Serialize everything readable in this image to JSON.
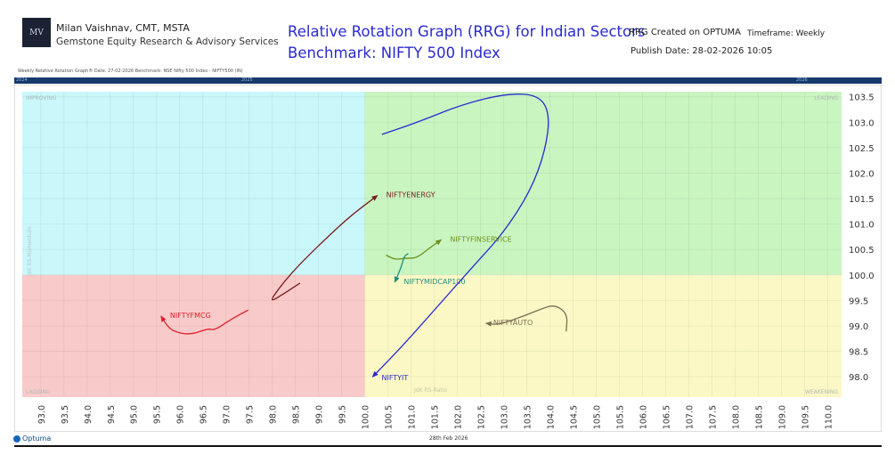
{
  "header": {
    "logo_text": "MV",
    "author": "Milan Vaishnav, CMT, MSTA",
    "firm": "Gemstone Equity Research & Advisory Services",
    "title_line1": "Relative Rotation Graph (RRG) for Indian Sectors",
    "title_line2": "Benchmark: NIFTY 500 Index",
    "created": "RRG Created on OPTUMA",
    "timeframe": "Timeframe: Weekly",
    "publish": "Publish Date: 28-02-2026 10:05"
  },
  "subheader": "Weekly Relative Rotation Graph®    Date: 27-02-2026  Benchmark: NSE Nifty 500 Index - NIFTY500 (IN)",
  "timeline": {
    "years": [
      "2024",
      "2025",
      "2026"
    ]
  },
  "footer": {
    "brand": "Optuma",
    "date": "28th Feb 2026"
  },
  "chart_data": {
    "type": "scatter",
    "subtype": "relative-rotation-graph",
    "xlabel": "JdK RS-Ratio",
    "ylabel": "JdK RS-Momentum",
    "xlim": [
      92.6,
      110.3
    ],
    "ylim": [
      97.6,
      103.6
    ],
    "xticks": [
      "93.0",
      "93.5",
      "94.0",
      "94.5",
      "95.0",
      "95.5",
      "96.0",
      "96.5",
      "97.0",
      "97.5",
      "98.0",
      "98.5",
      "99.0",
      "99.5",
      "100.0",
      "100.5",
      "101.0",
      "101.5",
      "102.0",
      "102.5",
      "103.0",
      "103.5",
      "104.0",
      "104.5",
      "105.0",
      "105.5",
      "106.0",
      "106.5",
      "107.0",
      "107.5",
      "108.0",
      "108.5",
      "109.0",
      "109.5",
      "110.0"
    ],
    "yticks": [
      "103.5",
      "103.0",
      "102.5",
      "102.0",
      "101.5",
      "101.0",
      "100.5",
      "100.0",
      "99.5",
      "99.0",
      "98.5",
      "98.0"
    ],
    "grid": true,
    "quadrants": [
      {
        "name": "IMPROVING",
        "color": "#c9f7fa"
      },
      {
        "name": "LEADING",
        "color": "#c9f5c1"
      },
      {
        "name": "LAGGING",
        "color": "#f9caca"
      },
      {
        "name": "WEAKENING",
        "color": "#fbf8c6"
      }
    ],
    "series": [
      {
        "name": "NIFTYIT",
        "color": "#2a2acf",
        "points": [
          [
            100.37,
            102.76
          ],
          [
            101.17,
            103.01
          ],
          [
            102.13,
            103.36
          ],
          [
            103.1,
            103.57
          ],
          [
            103.77,
            103.53
          ],
          [
            104.0,
            103.15
          ],
          [
            103.9,
            102.44
          ],
          [
            103.58,
            101.65
          ],
          [
            103.0,
            100.83
          ],
          [
            102.33,
            100.16
          ],
          [
            101.56,
            99.37
          ],
          [
            100.79,
            98.58
          ],
          [
            100.17,
            98.0
          ]
        ]
      },
      {
        "name": "NIFTYENERGY",
        "color": "#7a1c1c",
        "points": [
          [
            98.6,
            99.84
          ],
          [
            98.25,
            99.63
          ],
          [
            97.94,
            99.46
          ],
          [
            98.13,
            99.72
          ],
          [
            98.42,
            100.04
          ],
          [
            98.77,
            100.37
          ],
          [
            99.19,
            100.74
          ],
          [
            99.69,
            101.16
          ],
          [
            100.27,
            101.56
          ]
        ]
      },
      {
        "name": "NIFTYFMCG",
        "color": "#e0202a",
        "points": [
          [
            97.48,
            99.31
          ],
          [
            97.13,
            99.14
          ],
          [
            96.75,
            98.91
          ],
          [
            96.62,
            98.95
          ],
          [
            96.23,
            98.82
          ],
          [
            95.85,
            98.89
          ],
          [
            95.69,
            99.05
          ],
          [
            95.6,
            99.19
          ]
        ]
      },
      {
        "name": "NIFTYFINSERVICE",
        "color": "#6f8f1a",
        "points": [
          [
            100.46,
            100.39
          ],
          [
            100.65,
            100.3
          ],
          [
            100.88,
            100.33
          ],
          [
            101.12,
            100.33
          ],
          [
            101.37,
            100.51
          ],
          [
            101.65,
            100.69
          ]
        ]
      },
      {
        "name": "NIFTYMIDCAP100",
        "color": "#1f8f7f",
        "points": [
          [
            100.94,
            100.42
          ],
          [
            100.85,
            100.37
          ],
          [
            100.79,
            100.16
          ],
          [
            100.65,
            99.86
          ]
        ]
      },
      {
        "name": "NIFTYAUTO",
        "color": "#7a6f55",
        "points": [
          [
            104.35,
            98.89
          ],
          [
            104.38,
            99.24
          ],
          [
            104.1,
            99.42
          ],
          [
            103.81,
            99.33
          ],
          [
            103.42,
            99.19
          ],
          [
            102.9,
            99.02
          ],
          [
            102.62,
            99.05
          ]
        ]
      }
    ]
  }
}
